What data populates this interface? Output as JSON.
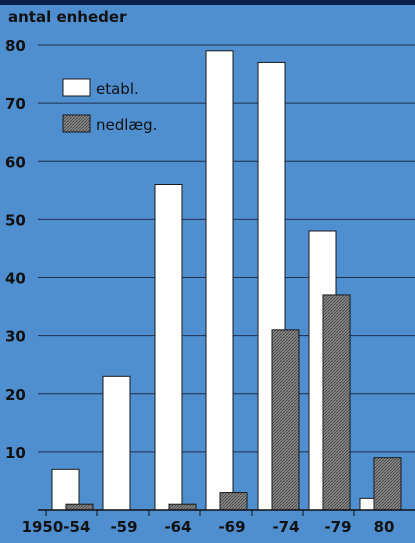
{
  "chart_data": {
    "type": "bar",
    "ylabel": "antal enheder",
    "categories": [
      "1950-54",
      "-59",
      "-64",
      "-69",
      "-74",
      "-79",
      "80"
    ],
    "series": [
      {
        "name": "etabl.",
        "values": [
          7,
          23,
          56,
          79,
          77,
          48,
          2
        ]
      },
      {
        "name": "nedlæg.",
        "values": [
          1,
          0,
          1,
          3,
          31,
          37,
          9
        ]
      }
    ],
    "ylim": [
      0,
      80
    ],
    "yticks": [
      10,
      20,
      30,
      40,
      50,
      60,
      70,
      80
    ],
    "grid": true,
    "legend_position": "top-left",
    "colors": {
      "background": "#4f8fd0",
      "etabl": "#ffffff",
      "nedlaeg": "#7a7a7a",
      "grid": "#1f2f4f",
      "text": "#111111"
    }
  }
}
